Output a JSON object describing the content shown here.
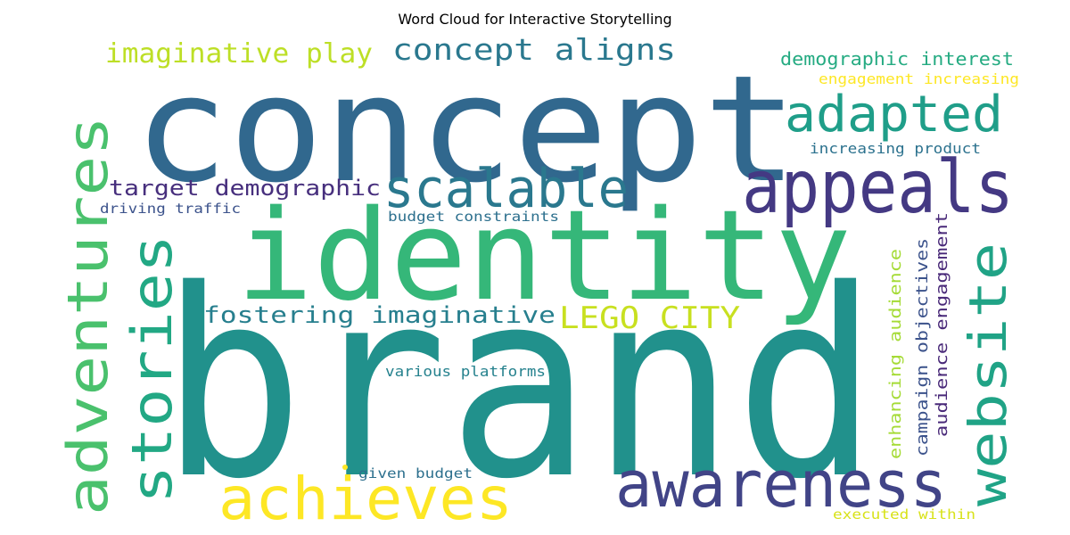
{
  "title": "Word Cloud for Interactive Storytelling",
  "words": [
    {
      "text": "brand",
      "color": "#21918c"
    },
    {
      "text": "concept",
      "color": "#31688e"
    },
    {
      "text": "identity",
      "color": "#35b779"
    },
    {
      "text": "appeals",
      "color": "#443983"
    },
    {
      "text": "awareness",
      "color": "#414487"
    },
    {
      "text": "adapted",
      "color": "#1f9e89"
    },
    {
      "text": "scalable",
      "color": "#2a788e"
    },
    {
      "text": "achieves",
      "color": "#fde725"
    },
    {
      "text": "adventures",
      "color": "#4ac16d"
    },
    {
      "text": "stories",
      "color": "#22a884"
    },
    {
      "text": "website",
      "color": "#20a386"
    },
    {
      "text": "concept aligns",
      "color": "#2a788e"
    },
    {
      "text": "imaginative play",
      "color": "#bddf26"
    },
    {
      "text": "target demographic",
      "color": "#472f7d"
    },
    {
      "text": "fostering imaginative",
      "color": "#277f8e"
    },
    {
      "text": "LEGO CITY",
      "color": "#c8e020"
    },
    {
      "text": "demographic interest",
      "color": "#25ab82"
    },
    {
      "text": "engagement increasing",
      "color": "#fde725"
    },
    {
      "text": "increasing product",
      "color": "#2c728e"
    },
    {
      "text": "driving traffic",
      "color": "#3b528b"
    },
    {
      "text": "budget constraints",
      "color": "#2d708e"
    },
    {
      "text": "audience engagement",
      "color": "#482878"
    },
    {
      "text": "campaign objectives",
      "color": "#3b528b"
    },
    {
      "text": "enhancing audience",
      "color": "#a5db36"
    },
    {
      "text": "various platforms",
      "color": "#26828e"
    },
    {
      "text": "given budget",
      "color": "#2d708e"
    },
    {
      "text": "executed within",
      "color": "#d8e219"
    }
  ]
}
